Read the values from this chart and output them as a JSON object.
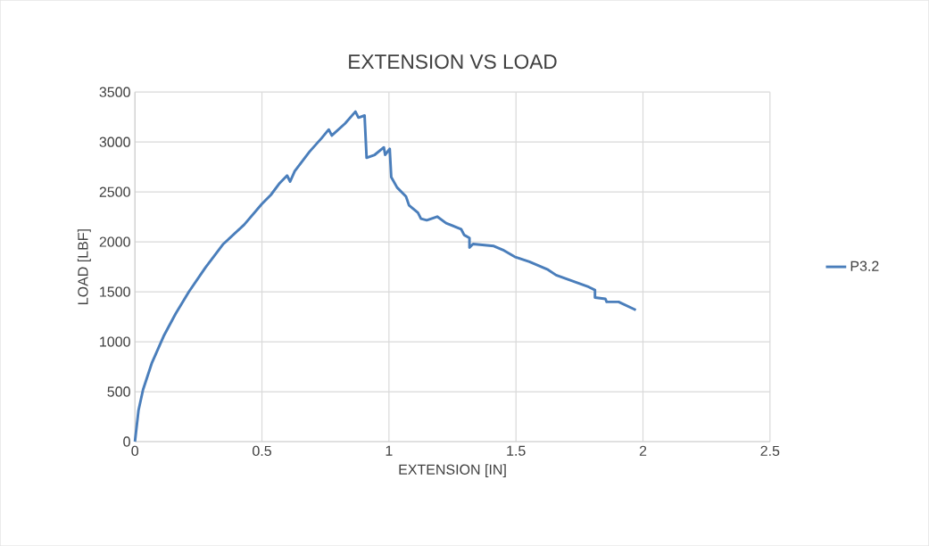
{
  "chart_data": {
    "type": "line",
    "title": "EXTENSION VS LOAD",
    "xlabel": "EXTENSION [IN]",
    "ylabel": "LOAD [LBF]",
    "xlim": [
      0,
      2.5
    ],
    "xticks": [
      0,
      0.5,
      1,
      1.5,
      2,
      2.5
    ],
    "ylim": [
      0,
      3500
    ],
    "yticks": [
      0,
      500,
      1000,
      1500,
      2000,
      2500,
      3000,
      3500
    ],
    "grid": true,
    "legend": "right",
    "marker": "none",
    "line_style": "solid",
    "series": [
      {
        "name": "P3.2",
        "color": "#4a7ebb",
        "x": [
          0,
          0.014,
          0.032,
          0.067,
          0.113,
          0.16,
          0.213,
          0.277,
          0.348,
          0.43,
          0.5,
          0.535,
          0.57,
          0.599,
          0.611,
          0.629,
          0.687,
          0.734,
          0.763,
          0.775,
          0.827,
          0.868,
          0.88,
          0.904,
          0.912,
          0.944,
          0.98,
          0.985,
          1.003,
          1.009,
          1.032,
          1.067,
          1.079,
          1.114,
          1.126,
          1.149,
          1.19,
          1.225,
          1.284,
          1.296,
          1.317,
          1.317,
          1.331,
          1.413,
          1.448,
          1.495,
          1.553,
          1.623,
          1.658,
          1.787,
          1.811,
          1.811,
          1.852,
          1.857,
          1.904,
          1.972
        ],
        "values": [
          0,
          313,
          520,
          790,
          1056,
          1280,
          1503,
          1741,
          1979,
          2172,
          2381,
          2470,
          2589,
          2664,
          2604,
          2708,
          2902,
          3036,
          3125,
          3065,
          3185,
          3304,
          3244,
          3265,
          2842,
          2872,
          2946,
          2872,
          2931,
          2649,
          2545,
          2455,
          2366,
          2292,
          2232,
          2217,
          2253,
          2188,
          2128,
          2069,
          2039,
          1943,
          1979,
          1958,
          1920,
          1851,
          1801,
          1726,
          1667,
          1548,
          1518,
          1443,
          1429,
          1399,
          1399,
          1318
        ]
      }
    ]
  }
}
